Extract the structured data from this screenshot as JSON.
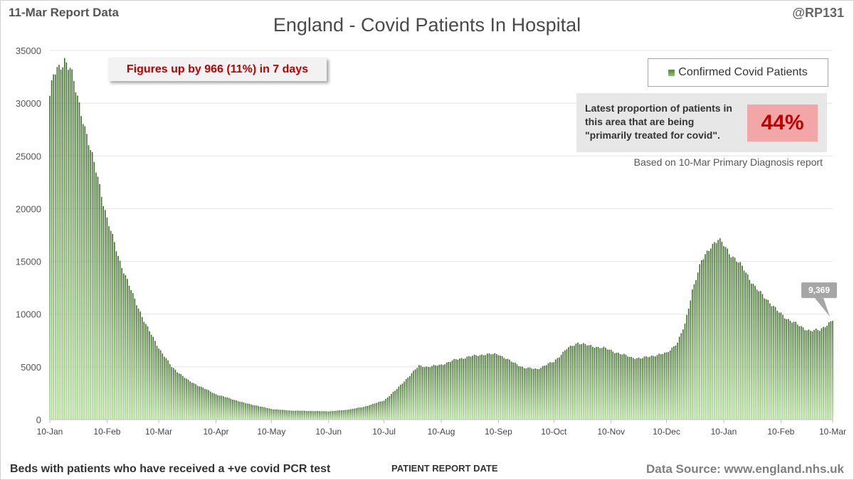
{
  "header": {
    "report_label": "11-Mar Report Data",
    "handle": "@RP131"
  },
  "annotations": {
    "change_note": "Figures up by 966 (11%) in 7 days",
    "proportion_text": "Latest proportion of patients in this area that are being \"primarily treated for covid\".",
    "proportion_value": "44%",
    "based_on": "Based on 10-Mar Primary Diagnosis report",
    "last_value_label": "9,369"
  },
  "footer": {
    "description": "Beds with patients who have received a +ve covid PCR test",
    "data_source": "Data Source: www.england.nhs.uk"
  },
  "colors": {
    "bar_top": "#3e6b2b",
    "bar_bottom": "#a9d98e",
    "note_text": "#c00000",
    "highlight_bg": "#f3a6a6"
  },
  "chart_data": {
    "type": "bar",
    "title": "England - Covid Patients In Hospital",
    "xlabel": "PATIENT REPORT DATE",
    "ylabel": "",
    "ylim": [
      0,
      35000
    ],
    "yticks": [
      "0",
      "5000",
      "10000",
      "15000",
      "20000",
      "25000",
      "30000",
      "35000"
    ],
    "legend": {
      "position": "top-right",
      "entries": [
        "Confirmed Covid Patients"
      ]
    },
    "xticks": [
      "10-Jan",
      "10-Feb",
      "10-Mar",
      "10-Apr",
      "10-May",
      "10-Jun",
      "10-Jul",
      "10-Aug",
      "10-Sep",
      "10-Oct",
      "10-Nov",
      "10-Dec",
      "10-Jan",
      "10-Feb",
      "10-Mar"
    ],
    "xtick_days": [
      0,
      31,
      59,
      90,
      120,
      151,
      181,
      212,
      243,
      273,
      304,
      334,
      365,
      396,
      424
    ],
    "series": [
      {
        "name": "Confirmed Covid Patients",
        "start": "10-Jan",
        "end": "10-Mar",
        "keypoints_day_value": [
          [
            0,
            30700
          ],
          [
            2,
            32600
          ],
          [
            5,
            33300
          ],
          [
            8,
            34200
          ],
          [
            11,
            33300
          ],
          [
            14,
            31200
          ],
          [
            18,
            28500
          ],
          [
            22,
            25500
          ],
          [
            26,
            23000
          ],
          [
            31,
            19000
          ],
          [
            38,
            15000
          ],
          [
            45,
            11800
          ],
          [
            52,
            9000
          ],
          [
            59,
            6800
          ],
          [
            66,
            5000
          ],
          [
            75,
            3700
          ],
          [
            90,
            2400
          ],
          [
            105,
            1600
          ],
          [
            120,
            1000
          ],
          [
            130,
            850
          ],
          [
            151,
            780
          ],
          [
            160,
            900
          ],
          [
            170,
            1200
          ],
          [
            181,
            1800
          ],
          [
            188,
            2900
          ],
          [
            195,
            4200
          ],
          [
            200,
            5100
          ],
          [
            205,
            5000
          ],
          [
            212,
            5200
          ],
          [
            220,
            5700
          ],
          [
            228,
            6000
          ],
          [
            236,
            6200
          ],
          [
            243,
            6200
          ],
          [
            250,
            5500
          ],
          [
            257,
            4900
          ],
          [
            264,
            4800
          ],
          [
            273,
            5500
          ],
          [
            280,
            6700
          ],
          [
            286,
            7300
          ],
          [
            292,
            7000
          ],
          [
            300,
            6800
          ],
          [
            308,
            6300
          ],
          [
            315,
            5900
          ],
          [
            320,
            5800
          ],
          [
            325,
            6000
          ],
          [
            334,
            6300
          ],
          [
            340,
            7300
          ],
          [
            344,
            9000
          ],
          [
            348,
            12300
          ],
          [
            353,
            15000
          ],
          [
            358,
            16500
          ],
          [
            362,
            17000
          ],
          [
            365,
            16600
          ],
          [
            370,
            15400
          ],
          [
            376,
            14300
          ],
          [
            382,
            12500
          ],
          [
            388,
            11500
          ],
          [
            394,
            10300
          ],
          [
            400,
            9500
          ],
          [
            407,
            8800
          ],
          [
            412,
            8400
          ],
          [
            417,
            8500
          ],
          [
            420,
            8900
          ],
          [
            424,
            9369
          ]
        ]
      }
    ]
  }
}
